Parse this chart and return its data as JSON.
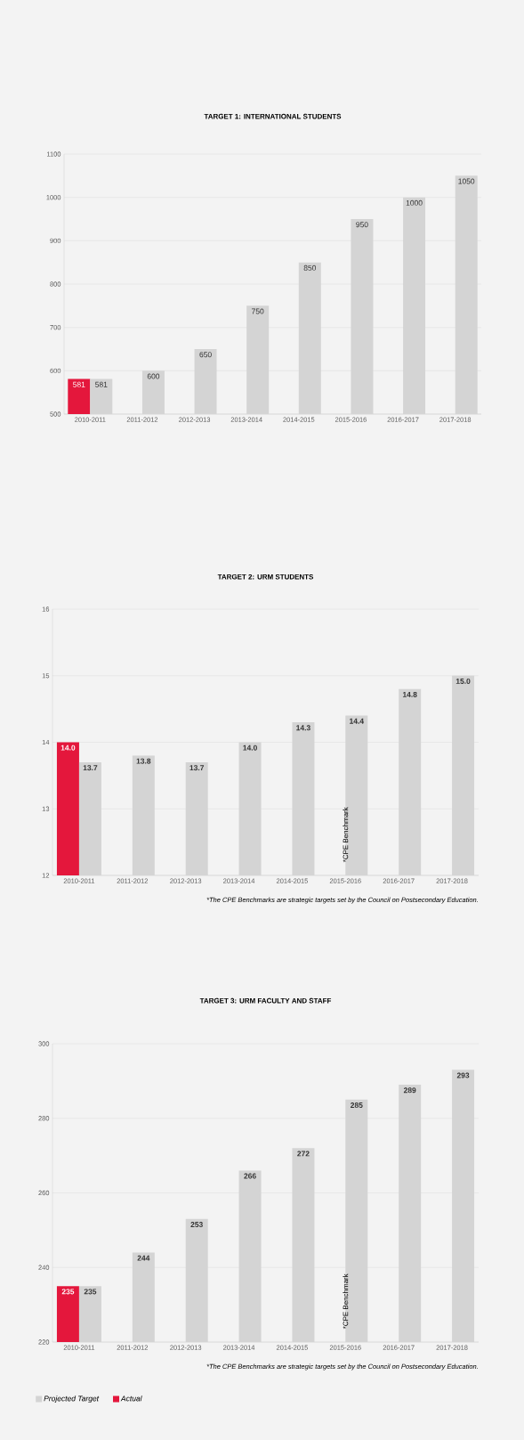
{
  "chart_data": [
    {
      "type": "bar",
      "title": "TARGET 1:  INTERNATIONAL STUDENTS",
      "categories": [
        "2010-2011",
        "2011-2012",
        "2012-2013",
        "2013-2014",
        "2014-2015",
        "2015-2016",
        "2016-2017",
        "2017-2018"
      ],
      "series": [
        {
          "color": "#e4173c",
          "values": [
            581,
            null,
            null,
            null,
            null,
            null,
            null,
            null
          ]
        },
        {
          "color": "#d4d4d4",
          "values": [
            581,
            600,
            650,
            750,
            850,
            950,
            1000,
            1050
          ]
        }
      ],
      "ylim": [
        500,
        1100
      ],
      "yticks": [
        500,
        600,
        700,
        800,
        900,
        1000,
        1100
      ],
      "grid": "y",
      "data_labels": true,
      "legend": false
    },
    {
      "type": "bar",
      "title": "TARGET 2:  URM STUDENTS",
      "categories": [
        "2010-2011",
        "2011-2012",
        "2012-2013",
        "2013-2014",
        "2014-2015",
        "2015-2016",
        "2016-2017",
        "2017-2018"
      ],
      "series": [
        {
          "color": "#e4173c",
          "values": [
            14.0,
            null,
            null,
            null,
            null,
            null,
            null,
            null
          ],
          "value_labels": [
            "14.0",
            null,
            null,
            null,
            null,
            null,
            null,
            null
          ]
        },
        {
          "color": "#d4d4d4",
          "values": [
            13.7,
            13.8,
            13.7,
            14.0,
            14.3,
            14.4,
            14.8,
            15.0
          ],
          "value_labels": [
            "13.7",
            "13.8",
            "13.7",
            "14.0",
            "14.3",
            "14.4",
            "14.8",
            "15.0"
          ]
        }
      ],
      "ylim": [
        12,
        16
      ],
      "yticks": [
        12,
        13,
        14,
        15,
        16
      ],
      "grid": "y",
      "legend": false,
      "annotations": [
        {
          "text": "*CPE Benchmark",
          "x": "2015-2016"
        },
        "*The CPE Benchmarks are strategic targets set by the Council on Postsecondary Education."
      ]
    },
    {
      "type": "bar",
      "title": "TARGET 3: URM FACULTY AND STAFF",
      "categories": [
        "2010-2011",
        "2011-2012",
        "2012-2013",
        "2013-2014",
        "2014-2015",
        "2015-2016",
        "2016-2017",
        "2017-2018"
      ],
      "series": [
        {
          "name": "Actual",
          "color": "#e4173c",
          "values": [
            235,
            null,
            null,
            null,
            null,
            null,
            null,
            null
          ]
        },
        {
          "name": "Projected Target",
          "color": "#d4d4d4",
          "values": [
            235,
            244,
            253,
            266,
            272,
            285,
            289,
            293
          ]
        }
      ],
      "ylim": [
        220,
        300
      ],
      "yticks": [
        220,
        240,
        260,
        280,
        300
      ],
      "grid": "y",
      "data_labels": true,
      "legend": "bottom left",
      "annotations": [
        {
          "text": "*CPE Benchmark",
          "x": "2015-2016"
        },
        "*The CPE Benchmarks are strategic targets set by the Council on Postsecondary Education."
      ]
    }
  ]
}
